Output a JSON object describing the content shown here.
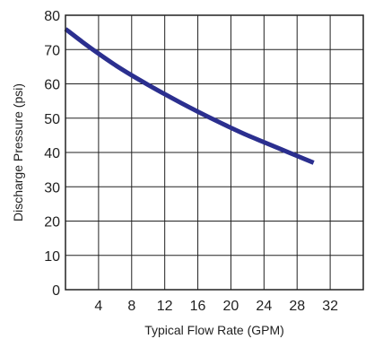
{
  "chart_data": {
    "type": "line",
    "xlabel": "Typical Flow Rate (GPM)",
    "ylabel": "Discharge Pressure (psi)",
    "xlim": [
      0,
      36
    ],
    "ylim": [
      0,
      80
    ],
    "x_ticks": [
      0,
      4,
      8,
      12,
      16,
      20,
      24,
      28,
      32,
      36
    ],
    "x_tick_labels": [
      "4",
      "8",
      "12",
      "16",
      "20",
      "24",
      "28",
      "32"
    ],
    "x_tick_label_values": [
      4,
      8,
      12,
      16,
      20,
      24,
      28,
      32
    ],
    "y_ticks": [
      0,
      10,
      20,
      30,
      40,
      50,
      60,
      70,
      80
    ],
    "y_tick_labels": [
      "0",
      "10",
      "20",
      "30",
      "40",
      "50",
      "60",
      "70",
      "80"
    ],
    "grid": true,
    "series": [
      {
        "color": "#2b2f8f",
        "x": [
          0,
          2,
          4,
          6,
          8,
          10,
          12,
          14,
          16,
          18,
          20,
          22,
          24,
          26,
          28,
          30
        ],
        "y": [
          76,
          72.3,
          68.8,
          65.5,
          62.5,
          59.7,
          57.0,
          54.4,
          51.9,
          49.5,
          47.2,
          45.0,
          43.0,
          41.0,
          39.0,
          37.0
        ]
      }
    ]
  }
}
